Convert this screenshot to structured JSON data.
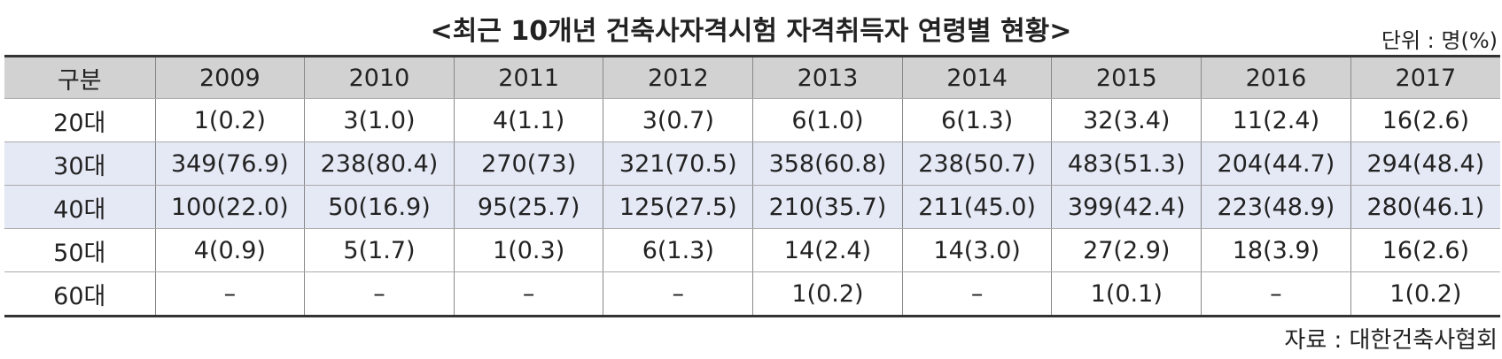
{
  "title": "<최근 10개년 건축사자격시험 자격취득자 연령별 현황>",
  "unit": "단위 : 명(%)",
  "table": {
    "header": [
      "구분",
      "2009",
      "2010",
      "2011",
      "2012",
      "2013",
      "2014",
      "2015",
      "2016",
      "2017"
    ],
    "rows": [
      [
        "20대",
        "1(0.2)",
        "3(1.0)",
        "4(1.1)",
        "3(0.7)",
        "6(1.0)",
        "6(1.3)",
        "32(3.4)",
        "11(2.4)",
        "16(2.6)"
      ],
      [
        "30대",
        "349(76.9)",
        "238(80.4)",
        "270(73)",
        "321(70.5)",
        "358(60.8)",
        "238(50.7)",
        "483(51.3)",
        "204(44.7)",
        "294(48.4)"
      ],
      [
        "40대",
        "100(22.0)",
        "50(16.9)",
        "95(25.7)",
        "125(27.5)",
        "210(35.7)",
        "211(45.0)",
        "399(42.4)",
        "223(48.9)",
        "280(46.1)"
      ],
      [
        "50대",
        "4(0.9)",
        "5(1.7)",
        "1(0.3)",
        "6(1.3)",
        "14(2.4)",
        "14(3.0)",
        "27(2.9)",
        "18(3.9)",
        "16(2.6)"
      ],
      [
        "60대",
        "–",
        "–",
        "–",
        "–",
        "1(0.2)",
        "–",
        "1(0.1)",
        "–",
        "1(0.2)"
      ]
    ]
  },
  "source": "자료 : 대한건축사협회"
}
